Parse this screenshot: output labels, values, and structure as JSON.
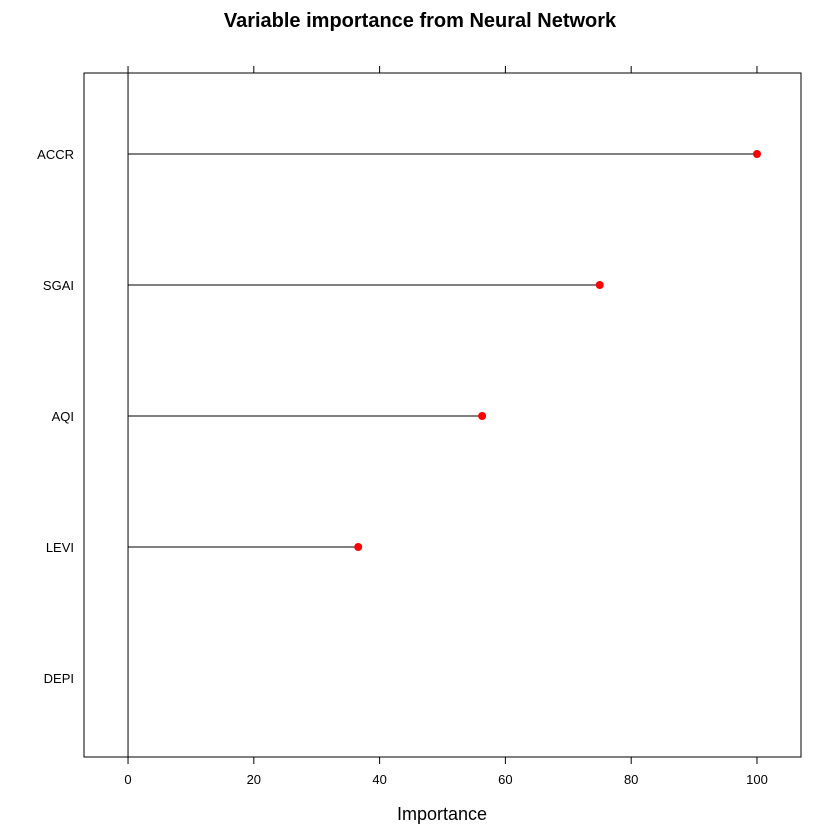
{
  "chart_data": {
    "type": "lollipop",
    "title": "Variable importance from Neural Network",
    "xlabel": "Importance",
    "ylabel": "",
    "xlim": [
      -7,
      107
    ],
    "x_ticks": [
      0,
      20,
      40,
      60,
      80,
      100
    ],
    "x_tick_labels": [
      "0",
      "20",
      "40",
      "60",
      "80",
      "100"
    ],
    "categories": [
      "ACCR",
      "SGAI",
      "AQI",
      "LEVI",
      "DEPI"
    ],
    "values": [
      100,
      75,
      56.3,
      36.6,
      0
    ],
    "point_color": "#ff0000",
    "line_color": "#000000",
    "reference_line_at": 0,
    "grid": false,
    "legend": "none"
  }
}
